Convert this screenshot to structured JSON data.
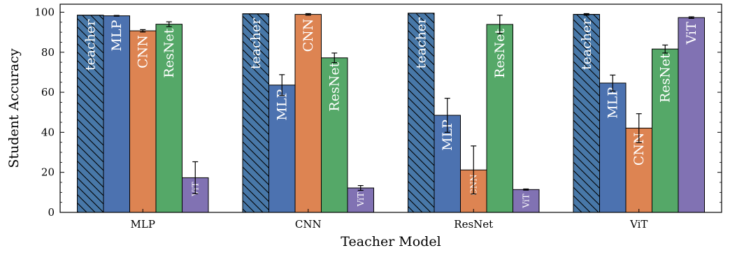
{
  "chart_data": {
    "type": "bar",
    "xlabel": "Teacher Model",
    "ylabel": "Student Accuracy",
    "ylim": [
      0,
      104
    ],
    "yticks": [
      0,
      20,
      40,
      60,
      80,
      100
    ],
    "grid": false,
    "legend": "none",
    "categories": [
      "MLP",
      "CNN",
      "ResNet",
      "ViT"
    ],
    "series": [
      {
        "name": "teacher",
        "color": "#4878a8",
        "hatch": true,
        "values": [
          98.5,
          99.2,
          99.5,
          98.9
        ],
        "errors": [
          0,
          0,
          0,
          0.4
        ]
      },
      {
        "name": "MLP",
        "color": "#4c72b0",
        "values": [
          98.2,
          63.6,
          48.5,
          64.6
        ],
        "errors": [
          0.2,
          5.2,
          8.5,
          4.0
        ]
      },
      {
        "name": "CNN",
        "color": "#dd8452",
        "values": [
          90.7,
          98.9,
          21.2,
          42.1
        ],
        "errors": [
          0.6,
          0.4,
          12.0,
          7.2
        ]
      },
      {
        "name": "ResNet",
        "color": "#55a868",
        "values": [
          94.0,
          77.2,
          93.9,
          81.6
        ],
        "errors": [
          1.2,
          2.4,
          4.6,
          2.0
        ]
      },
      {
        "name": "ViT",
        "color": "#8172b3",
        "values": [
          17.3,
          12.2,
          11.4,
          97.3
        ],
        "errors": [
          8.0,
          1.2,
          0.3,
          0.4
        ]
      }
    ]
  }
}
